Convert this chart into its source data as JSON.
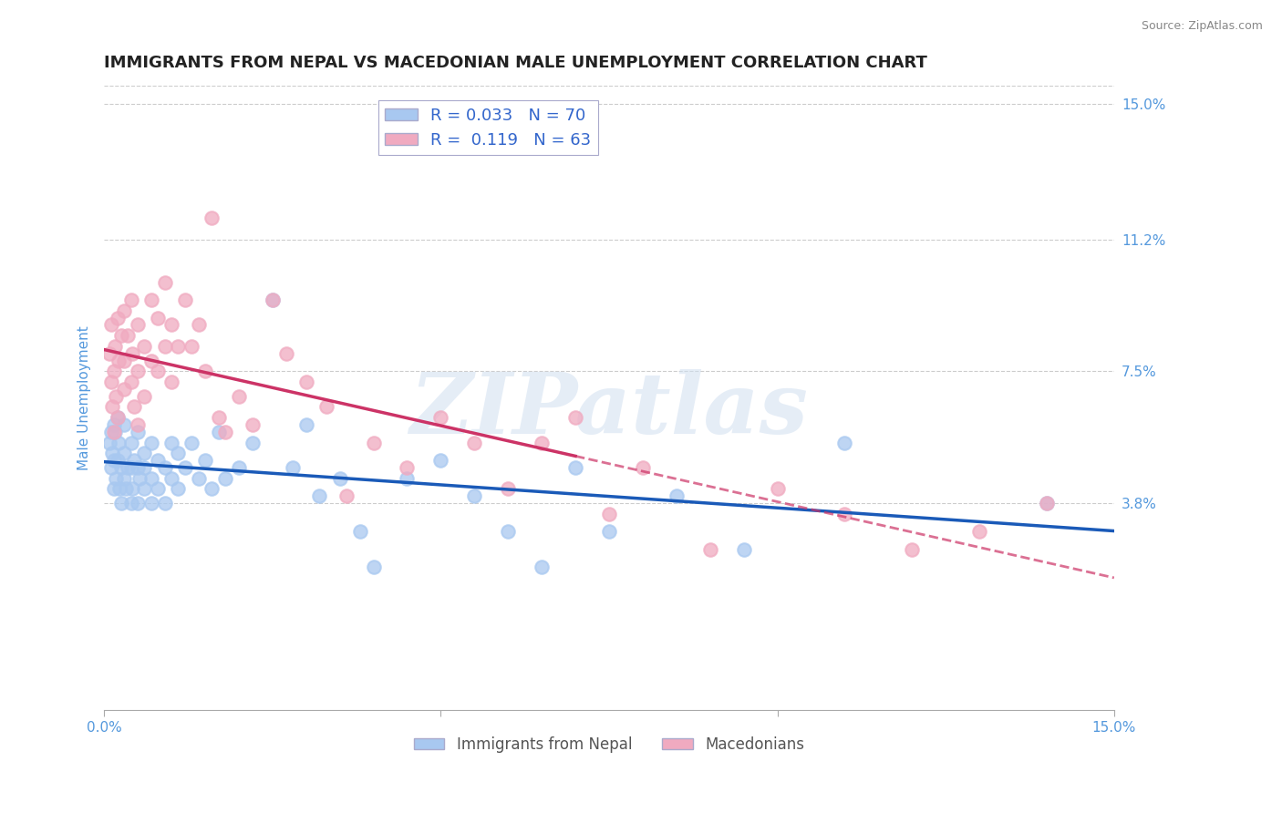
{
  "title": "IMMIGRANTS FROM NEPAL VS MACEDONIAN MALE UNEMPLOYMENT CORRELATION CHART",
  "source": "Source: ZipAtlas.com",
  "ylabel": "Male Unemployment",
  "xlim": [
    0.0,
    0.15
  ],
  "ylim": [
    -0.02,
    0.155
  ],
  "yticks": [
    0.038,
    0.075,
    0.112,
    0.15
  ],
  "ytick_labels": [
    "3.8%",
    "7.5%",
    "11.2%",
    "15.0%"
  ],
  "xticks": [
    0.0,
    0.05,
    0.1,
    0.15
  ],
  "xtick_labels": [
    "0.0%",
    "",
    "",
    "15.0%"
  ],
  "grid_color": "#cccccc",
  "background_color": "#ffffff",
  "watermark": "ZIPatlas",
  "nepal_color": "#a8c8f0",
  "nepal_trend_color": "#1a5ab8",
  "macedonian_color": "#f0aac0",
  "macedonian_trend_color": "#cc3366",
  "nepal_name": "Immigrants from Nepal",
  "macedonian_name": "Macedonians",
  "R1": "0.033",
  "N1": "70",
  "R2": "0.119",
  "N2": "63",
  "legend_color1": "#a8c8f0",
  "legend_color2": "#f0aac0",
  "title_color": "#222222",
  "axis_color": "#5599dd",
  "tick_color": "#5599dd",
  "title_fontsize": 13,
  "ylabel_fontsize": 11,
  "tick_fontsize": 11,
  "legend_text_color": "#3366cc",
  "bottom_text_color": "#555555",
  "nepal_x": [
    0.0008,
    0.001,
    0.001,
    0.0012,
    0.0014,
    0.0015,
    0.0015,
    0.0016,
    0.0018,
    0.002,
    0.002,
    0.0022,
    0.0023,
    0.0025,
    0.0026,
    0.003,
    0.003,
    0.003,
    0.0032,
    0.0035,
    0.004,
    0.004,
    0.004,
    0.0042,
    0.0045,
    0.005,
    0.005,
    0.005,
    0.0052,
    0.006,
    0.006,
    0.006,
    0.007,
    0.007,
    0.007,
    0.008,
    0.008,
    0.009,
    0.009,
    0.01,
    0.01,
    0.011,
    0.011,
    0.012,
    0.013,
    0.014,
    0.015,
    0.016,
    0.017,
    0.018,
    0.02,
    0.022,
    0.025,
    0.028,
    0.03,
    0.032,
    0.035,
    0.038,
    0.04,
    0.045,
    0.05,
    0.055,
    0.06,
    0.065,
    0.07,
    0.075,
    0.085,
    0.095,
    0.11,
    0.14
  ],
  "nepal_y": [
    0.055,
    0.048,
    0.058,
    0.052,
    0.06,
    0.042,
    0.05,
    0.058,
    0.045,
    0.05,
    0.062,
    0.055,
    0.042,
    0.048,
    0.038,
    0.052,
    0.045,
    0.06,
    0.042,
    0.048,
    0.055,
    0.048,
    0.038,
    0.042,
    0.05,
    0.058,
    0.048,
    0.038,
    0.045,
    0.052,
    0.042,
    0.048,
    0.055,
    0.045,
    0.038,
    0.05,
    0.042,
    0.048,
    0.038,
    0.055,
    0.045,
    0.052,
    0.042,
    0.048,
    0.055,
    0.045,
    0.05,
    0.042,
    0.058,
    0.045,
    0.048,
    0.055,
    0.095,
    0.048,
    0.06,
    0.04,
    0.045,
    0.03,
    0.02,
    0.045,
    0.05,
    0.04,
    0.03,
    0.02,
    0.048,
    0.03,
    0.04,
    0.025,
    0.055,
    0.038
  ],
  "mace_x": [
    0.0008,
    0.001,
    0.001,
    0.0012,
    0.0014,
    0.0015,
    0.0016,
    0.0018,
    0.002,
    0.002,
    0.0022,
    0.0025,
    0.003,
    0.003,
    0.003,
    0.0035,
    0.004,
    0.004,
    0.0042,
    0.0045,
    0.005,
    0.005,
    0.005,
    0.006,
    0.006,
    0.007,
    0.007,
    0.008,
    0.008,
    0.009,
    0.009,
    0.01,
    0.01,
    0.011,
    0.012,
    0.013,
    0.014,
    0.015,
    0.016,
    0.017,
    0.018,
    0.02,
    0.022,
    0.025,
    0.027,
    0.03,
    0.033,
    0.036,
    0.04,
    0.045,
    0.05,
    0.055,
    0.06,
    0.065,
    0.07,
    0.075,
    0.08,
    0.09,
    0.1,
    0.11,
    0.12,
    0.13,
    0.14
  ],
  "mace_y": [
    0.08,
    0.072,
    0.088,
    0.065,
    0.075,
    0.058,
    0.082,
    0.068,
    0.09,
    0.062,
    0.078,
    0.085,
    0.092,
    0.07,
    0.078,
    0.085,
    0.095,
    0.072,
    0.08,
    0.065,
    0.088,
    0.075,
    0.06,
    0.082,
    0.068,
    0.095,
    0.078,
    0.09,
    0.075,
    0.1,
    0.082,
    0.088,
    0.072,
    0.082,
    0.095,
    0.082,
    0.088,
    0.075,
    0.118,
    0.062,
    0.058,
    0.068,
    0.06,
    0.095,
    0.08,
    0.072,
    0.065,
    0.04,
    0.055,
    0.048,
    0.062,
    0.055,
    0.042,
    0.055,
    0.062,
    0.035,
    0.048,
    0.025,
    0.042,
    0.035,
    0.025,
    0.03,
    0.038
  ]
}
